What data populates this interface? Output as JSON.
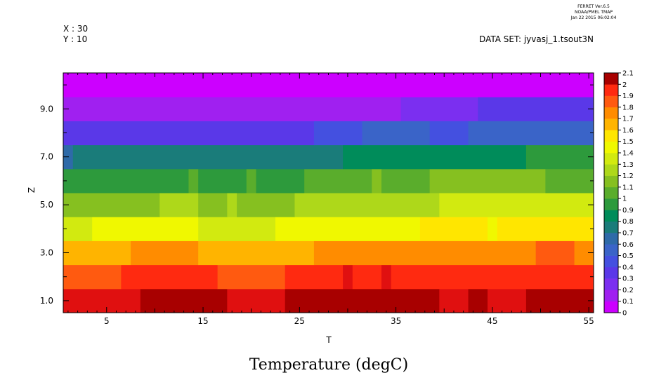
{
  "header": {
    "ferret_line1": "FERRET  Ver.6.5",
    "ferret_line2": "NOAA/PMEL TMAP",
    "ferret_line3": "Jan 22 2015 06:02:04",
    "x_info": "X : 30",
    "y_info": "Y : 10",
    "dataset": "DATA SET: jyvasj_1.tsout3N"
  },
  "chart_data": {
    "type": "heatmap",
    "title": "Temperature (degC)",
    "xlabel": "T",
    "ylabel": "Z",
    "xlim": [
      0.5,
      55.5
    ],
    "ylim": [
      0.5,
      10.5
    ],
    "x_ticks_major": [
      5,
      15,
      25,
      35,
      45,
      55
    ],
    "x_tick_labels": [
      "5",
      "15",
      "25",
      "35",
      "45",
      "55"
    ],
    "y_ticks_major": [
      1,
      3,
      5,
      7,
      9
    ],
    "y_tick_labels": [
      "1.0",
      "3.0",
      "5.0",
      "7.0",
      "9.0"
    ],
    "colorbar": {
      "levels": [
        0,
        0.1,
        0.2,
        0.3,
        0.4,
        0.5,
        0.6,
        0.7,
        0.8,
        0.9,
        1,
        1.1,
        1.2,
        1.3,
        1.4,
        1.5,
        1.6,
        1.7,
        1.8,
        1.9,
        2,
        2.1
      ],
      "labels": [
        "0",
        "0.1",
        "0.2",
        "0.3",
        "0.4",
        "0.5",
        "0.6",
        "0.7",
        "0.8",
        "0.9",
        "1",
        "1.1",
        "1.2",
        "1.3",
        "1.4",
        "1.5",
        "1.6",
        "1.7",
        "1.8",
        "1.9",
        "2",
        "2.1"
      ],
      "colors": [
        "#cc00ff",
        "#a020f0",
        "#7b2ff0",
        "#5a38e8",
        "#4450e0",
        "#3a64c8",
        "#2e6aa8",
        "#1a7c7a",
        "#008c5a",
        "#2d9a3c",
        "#5aad2c",
        "#86c020",
        "#aed81a",
        "#d2ea10",
        "#f0f800",
        "#ffe600",
        "#ffb400",
        "#ff8c00",
        "#ff5a10",
        "#ff2a10",
        "#e01010",
        "#a80000"
      ]
    },
    "rows": [
      {
        "z": 1,
        "segments": [
          [
            0.5,
            8.5,
            2.05
          ],
          [
            8.5,
            17.5,
            2.15
          ],
          [
            17.5,
            23.5,
            2.05
          ],
          [
            23.5,
            39.5,
            2.15
          ],
          [
            39.5,
            42.5,
            2.05
          ],
          [
            42.5,
            44.5,
            2.15
          ],
          [
            44.5,
            48.5,
            2.05
          ],
          [
            48.5,
            55.5,
            2.15
          ]
        ]
      },
      {
        "z": 2,
        "segments": [
          [
            0.5,
            6.5,
            1.85
          ],
          [
            6.5,
            16.5,
            1.95
          ],
          [
            16.5,
            23.5,
            1.85
          ],
          [
            23.5,
            29.5,
            1.95
          ],
          [
            29.5,
            30.5,
            2.05
          ],
          [
            30.5,
            33.5,
            1.95
          ],
          [
            33.5,
            34.5,
            2.05
          ],
          [
            34.5,
            55.5,
            1.95
          ]
        ]
      },
      {
        "z": 3,
        "segments": [
          [
            0.5,
            7.5,
            1.65
          ],
          [
            7.5,
            14.5,
            1.75
          ],
          [
            14.5,
            26.5,
            1.65
          ],
          [
            26.5,
            49.5,
            1.75
          ],
          [
            49.5,
            53.5,
            1.85
          ],
          [
            53.5,
            55.5,
            1.75
          ]
        ]
      },
      {
        "z": 4,
        "segments": [
          [
            0.5,
            3.5,
            1.35
          ],
          [
            3.5,
            14.5,
            1.45
          ],
          [
            14.5,
            22.5,
            1.35
          ],
          [
            22.5,
            37.5,
            1.45
          ],
          [
            37.5,
            44.5,
            1.55
          ],
          [
            44.5,
            45.5,
            1.45
          ],
          [
            45.5,
            55.5,
            1.55
          ]
        ]
      },
      {
        "z": 5,
        "segments": [
          [
            0.5,
            10.5,
            1.15
          ],
          [
            10.5,
            14.5,
            1.25
          ],
          [
            14.5,
            17.5,
            1.15
          ],
          [
            17.5,
            18.5,
            1.25
          ],
          [
            18.5,
            24.5,
            1.15
          ],
          [
            24.5,
            39.5,
            1.25
          ],
          [
            39.5,
            55.5,
            1.35
          ]
        ]
      },
      {
        "z": 6,
        "segments": [
          [
            0.5,
            13.5,
            0.95
          ],
          [
            13.5,
            14.5,
            1.05
          ],
          [
            14.5,
            19.5,
            0.95
          ],
          [
            19.5,
            20.5,
            1.05
          ],
          [
            20.5,
            25.5,
            0.95
          ],
          [
            25.5,
            32.5,
            1.05
          ],
          [
            32.5,
            33.5,
            1.15
          ],
          [
            33.5,
            38.5,
            1.05
          ],
          [
            38.5,
            50.5,
            1.15
          ],
          [
            50.5,
            55.5,
            1.05
          ]
        ]
      },
      {
        "z": 7,
        "segments": [
          [
            0.5,
            1.5,
            0.65
          ],
          [
            1.5,
            29.5,
            0.75
          ],
          [
            29.5,
            48.5,
            0.85
          ],
          [
            48.5,
            55.5,
            0.95
          ]
        ]
      },
      {
        "z": 8,
        "segments": [
          [
            0.5,
            26.5,
            0.35
          ],
          [
            26.5,
            31.5,
            0.45
          ],
          [
            31.5,
            38.5,
            0.55
          ],
          [
            38.5,
            42.5,
            0.45
          ],
          [
            42.5,
            55.5,
            0.55
          ]
        ]
      },
      {
        "z": 9,
        "segments": [
          [
            0.5,
            35.5,
            0.15
          ],
          [
            35.5,
            43.5,
            0.25
          ],
          [
            43.5,
            55.5,
            0.35
          ]
        ]
      },
      {
        "z": 10,
        "segments": [
          [
            0.5,
            55.5,
            0.05
          ]
        ]
      }
    ]
  }
}
